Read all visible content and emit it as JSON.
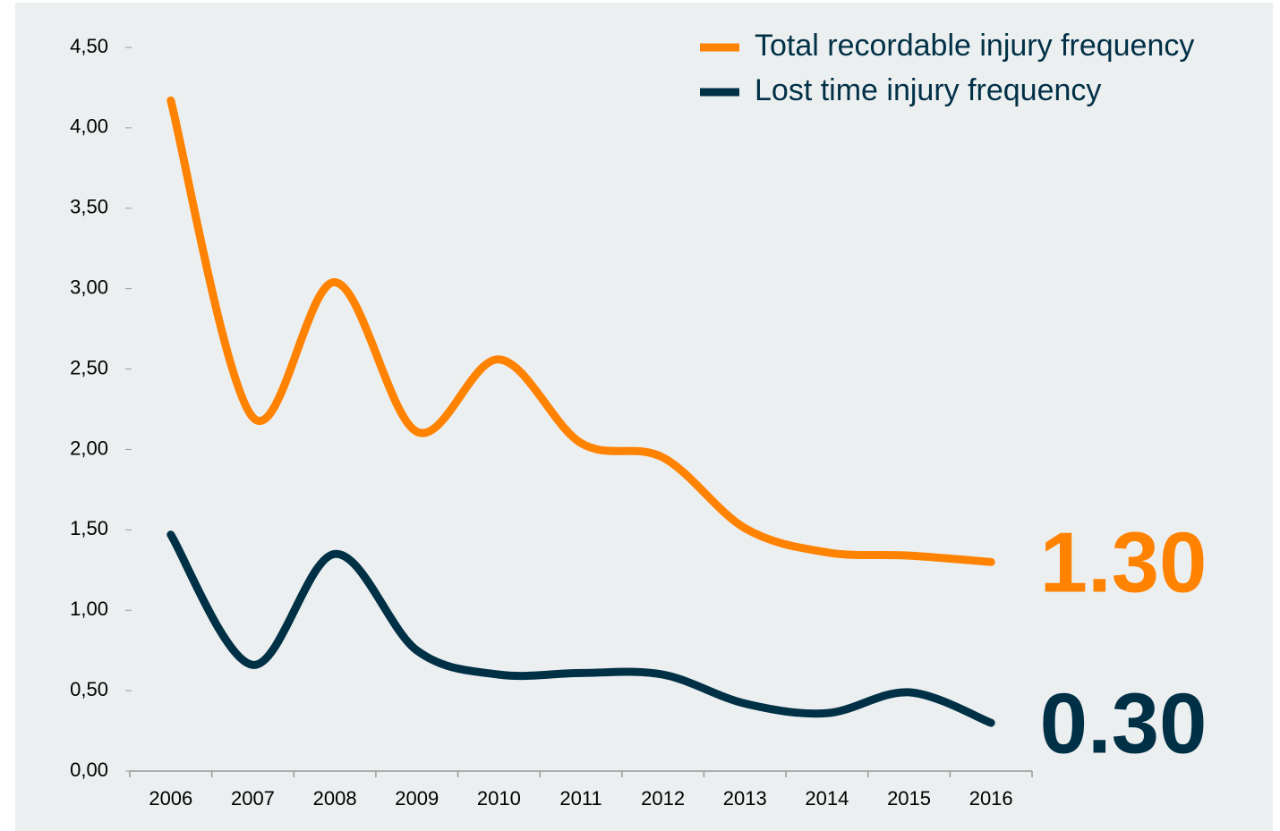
{
  "chart_data": {
    "type": "line",
    "categories": [
      "2006",
      "2007",
      "2008",
      "2009",
      "2010",
      "2011",
      "2012",
      "2013",
      "2014",
      "2015",
      "2016"
    ],
    "series": [
      {
        "name": "Total recordable injury frequency",
        "color": "#ff8200",
        "values": [
          4.17,
          2.2,
          3.04,
          2.11,
          2.56,
          2.04,
          1.95,
          1.51,
          1.36,
          1.34,
          1.3
        ],
        "value_labels": [
          null,
          null,
          null,
          null,
          null,
          null,
          null,
          null,
          null,
          null,
          "1.30"
        ]
      },
      {
        "name": "Lost time injury frequency",
        "color": "#003046",
        "values": [
          1.47,
          0.66,
          1.35,
          0.75,
          0.6,
          0.61,
          0.6,
          0.42,
          0.36,
          0.49,
          0.3
        ],
        "value_labels": [
          null,
          null,
          null,
          null,
          null,
          null,
          null,
          null,
          null,
          null,
          "0.30"
        ]
      }
    ],
    "ylim": [
      0,
      4.5
    ],
    "yticks": [
      {
        "value": 0,
        "label": "0,00"
      },
      {
        "value": 0.5,
        "label": "0,50"
      },
      {
        "value": 1,
        "label": "1,00"
      },
      {
        "value": 1.5,
        "label": "1,50"
      },
      {
        "value": 2,
        "label": "2,00"
      },
      {
        "value": 2.5,
        "label": "2,50"
      },
      {
        "value": 3,
        "label": "3,00"
      },
      {
        "value": 3.5,
        "label": "3,50"
      },
      {
        "value": 4,
        "label": "4,00"
      },
      {
        "value": 4.5,
        "label": "4,50"
      }
    ],
    "grid": false,
    "legend": "top-right"
  }
}
